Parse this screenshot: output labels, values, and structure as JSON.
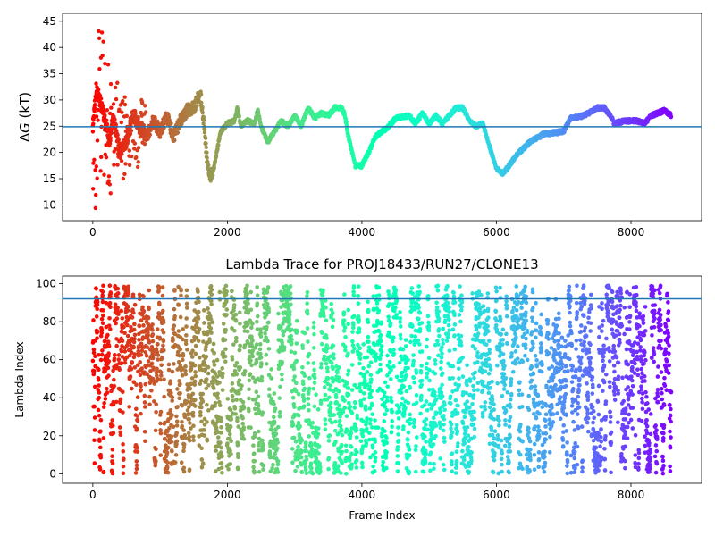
{
  "chart_data": [
    {
      "type": "scatter",
      "title": "",
      "xlabel": "",
      "ylabel_prefix": "Δ",
      "ylabel_var": "G",
      "ylabel_unit": " (kT)",
      "xlim": [
        -450,
        9050
      ],
      "ylim": [
        7,
        46.5
      ],
      "xticks": [
        0,
        2000,
        4000,
        6000,
        8000
      ],
      "xtick_labels": [
        "0",
        "2000",
        "4000",
        "6000",
        "8000"
      ],
      "yticks": [
        10,
        15,
        20,
        25,
        30,
        35,
        40,
        45
      ],
      "ytick_labels": [
        "10",
        "15",
        "20",
        "25",
        "30",
        "35",
        "40",
        "45"
      ],
      "hline": 24.9,
      "hline_color": "#1f77b4",
      "colormap": "rainbow",
      "color_direction": "red at frame 0 to violet at frame 8600",
      "grid": false,
      "x_range": [
        0,
        8600
      ],
      "trace_key_points": [
        [
          0,
          25
        ],
        [
          50,
          32
        ],
        [
          100,
          30
        ],
        [
          150,
          28
        ],
        [
          200,
          25
        ],
        [
          250,
          22
        ],
        [
          300,
          27
        ],
        [
          400,
          20
        ],
        [
          500,
          22
        ],
        [
          600,
          27
        ],
        [
          700,
          25
        ],
        [
          800,
          23
        ],
        [
          900,
          26
        ],
        [
          1000,
          24
        ],
        [
          1100,
          27
        ],
        [
          1200,
          23
        ],
        [
          1300,
          26
        ],
        [
          1400,
          28
        ],
        [
          1500,
          28.5
        ],
        [
          1550,
          30
        ],
        [
          1600,
          31
        ],
        [
          1650,
          26
        ],
        [
          1700,
          18
        ],
        [
          1750,
          15.5
        ],
        [
          1800,
          17
        ],
        [
          1900,
          24
        ],
        [
          2000,
          25.5
        ],
        [
          2100,
          26
        ],
        [
          2150,
          28.5
        ],
        [
          2200,
          25
        ],
        [
          2300,
          26
        ],
        [
          2400,
          25.5
        ],
        [
          2450,
          28
        ],
        [
          2500,
          25
        ],
        [
          2600,
          22
        ],
        [
          2700,
          24
        ],
        [
          2800,
          26
        ],
        [
          2900,
          25
        ],
        [
          3000,
          27
        ],
        [
          3100,
          25
        ],
        [
          3200,
          28.5
        ],
        [
          3300,
          26.5
        ],
        [
          3400,
          27.5
        ],
        [
          3500,
          27
        ],
        [
          3600,
          28.5
        ],
        [
          3700,
          28.5
        ],
        [
          3750,
          27
        ],
        [
          3800,
          23
        ],
        [
          3900,
          17.5
        ],
        [
          4000,
          17.5
        ],
        [
          4100,
          20
        ],
        [
          4200,
          23
        ],
        [
          4400,
          25
        ],
        [
          4500,
          26.5
        ],
        [
          4700,
          27
        ],
        [
          4800,
          25.5
        ],
        [
          4900,
          27.5
        ],
        [
          5000,
          25.5
        ],
        [
          5100,
          27
        ],
        [
          5200,
          25.5
        ],
        [
          5300,
          27
        ],
        [
          5400,
          28.5
        ],
        [
          5500,
          28.5
        ],
        [
          5600,
          26
        ],
        [
          5700,
          25
        ],
        [
          5800,
          25.5
        ],
        [
          5900,
          21
        ],
        [
          6000,
          17
        ],
        [
          6100,
          16
        ],
        [
          6300,
          19.5
        ],
        [
          6500,
          22
        ],
        [
          6700,
          23.5
        ],
        [
          6900,
          23.8
        ],
        [
          7000,
          24
        ],
        [
          7100,
          26.5
        ],
        [
          7300,
          27
        ],
        [
          7500,
          28.5
        ],
        [
          7600,
          28.5
        ],
        [
          7700,
          27
        ],
        [
          7750,
          25.5
        ],
        [
          7900,
          26
        ],
        [
          8100,
          26
        ],
        [
          8200,
          25.5
        ],
        [
          8300,
          27
        ],
        [
          8500,
          28
        ],
        [
          8600,
          27
        ]
      ],
      "early_scatter_ranges": [
        [
          0,
          8,
          40
        ],
        [
          50,
          11,
          44
        ],
        [
          100,
          15,
          43
        ],
        [
          200,
          10,
          37
        ],
        [
          300,
          16,
          36
        ],
        [
          400,
          15,
          32
        ],
        [
          500,
          17,
          30
        ],
        [
          700,
          21,
          30
        ]
      ]
    },
    {
      "type": "scatter",
      "title": "Lambda Trace for PROJ18433/RUN27/CLONE13",
      "xlabel": "Frame Index",
      "ylabel": "Lambda Index",
      "xlim": [
        -450,
        9050
      ],
      "ylim": [
        -5,
        104
      ],
      "xticks": [
        0,
        2000,
        4000,
        6000,
        8000
      ],
      "xtick_labels": [
        "0",
        "2000",
        "4000",
        "6000",
        "8000"
      ],
      "yticks": [
        0,
        20,
        40,
        60,
        80,
        100
      ],
      "ytick_labels": [
        "0",
        "20",
        "40",
        "60",
        "80",
        "100"
      ],
      "hline": 92,
      "hline_color": "#1f77b4",
      "colormap": "rainbow",
      "color_direction": "red at frame 0 to violet at frame 8600",
      "grid": false,
      "x_range": [
        0,
        8600
      ],
      "y_range": [
        0,
        99
      ],
      "point_count_estimate": 4300
    }
  ]
}
